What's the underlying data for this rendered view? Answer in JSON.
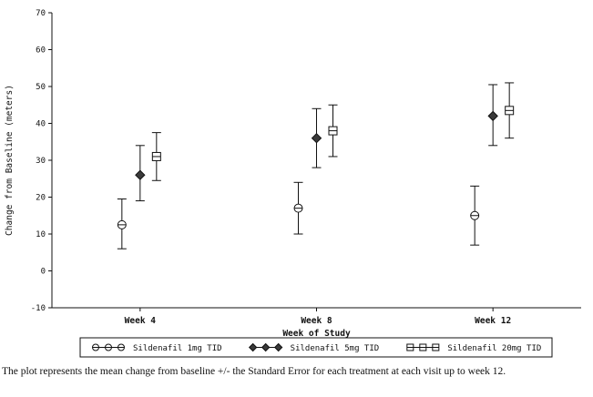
{
  "caption": "The plot represents the mean change from baseline +/- the Standard Error for each treatment at each visit up to week 12.",
  "chart_data": {
    "type": "scatter",
    "subtype": "errorbar",
    "title": "",
    "xlabel": "Week of Study",
    "ylabel": "Change from Baseline (meters)",
    "ylim": [
      -10,
      70
    ],
    "ytick_interval": 10,
    "categories": [
      "Week 4",
      "Week 8",
      "Week 12"
    ],
    "grid": false,
    "legend_position": "bottom",
    "error_type": "standard_error",
    "axis_color": "#111111",
    "series": [
      {
        "name": "Sildenafil 1mg TID",
        "marker": "circle",
        "means": [
          12.5,
          17,
          15
        ],
        "lower": [
          6,
          10,
          7
        ],
        "upper": [
          19.5,
          24,
          23
        ]
      },
      {
        "name": "Sildenafil 5mg TID",
        "marker": "diamond",
        "means": [
          26,
          36,
          42
        ],
        "lower": [
          19,
          28,
          34
        ],
        "upper": [
          34,
          44,
          50.5
        ]
      },
      {
        "name": "Sildenafil 20mg TID",
        "marker": "square",
        "means": [
          31,
          38,
          43.5
        ],
        "lower": [
          24.5,
          31,
          36
        ],
        "upper": [
          37.5,
          45,
          51
        ]
      }
    ]
  }
}
